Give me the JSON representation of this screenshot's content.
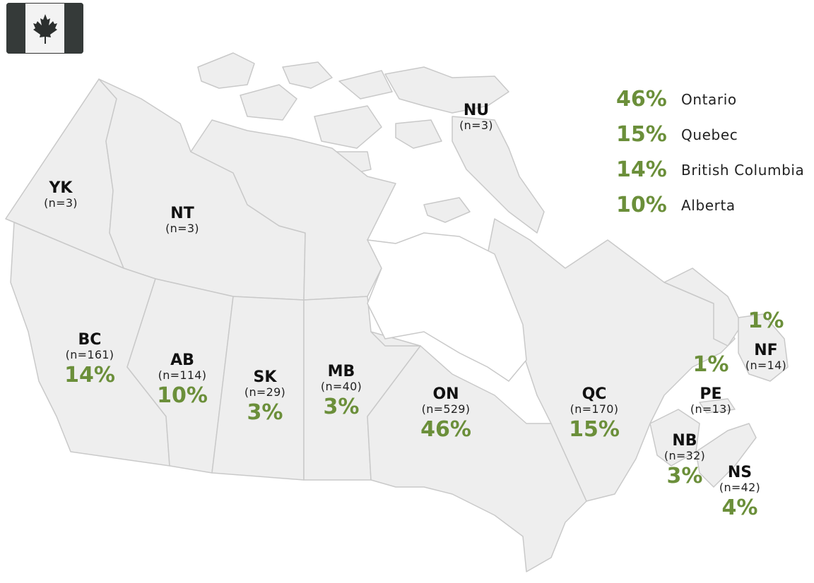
{
  "accent_color": "#6b8f3a",
  "land_color": "#eeeeee",
  "border_color": "#c9c9c9",
  "flag": {
    "icon": "maple-leaf-icon",
    "bar_color": "#353a39"
  },
  "legend": [
    {
      "pct": "46%",
      "name": "Ontario"
    },
    {
      "pct": "15%",
      "name": "Quebec"
    },
    {
      "pct": "14%",
      "name": "British Columbia"
    },
    {
      "pct": "10%",
      "name": "Alberta"
    }
  ],
  "regions": {
    "nu": {
      "code": "NU",
      "n": "(n=3)",
      "pct": ""
    },
    "yk": {
      "code": "YK",
      "n": "(n=3)",
      "pct": ""
    },
    "nt": {
      "code": "NT",
      "n": "(n=3)",
      "pct": ""
    },
    "bc": {
      "code": "BC",
      "n": "(n=161)",
      "pct": "14%"
    },
    "ab": {
      "code": "AB",
      "n": "(n=114)",
      "pct": "10%"
    },
    "sk": {
      "code": "SK",
      "n": "(n=29)",
      "pct": "3%"
    },
    "mb": {
      "code": "MB",
      "n": "(n=40)",
      "pct": "3%"
    },
    "on": {
      "code": "ON",
      "n": "(n=529)",
      "pct": "46%"
    },
    "qc": {
      "code": "QC",
      "n": "(n=170)",
      "pct": "15%"
    },
    "nf": {
      "code": "NF",
      "n": "(n=14)",
      "pct": "1%"
    },
    "pe": {
      "code": "PE",
      "n": "(n=13)",
      "pct": "1%"
    },
    "nb": {
      "code": "NB",
      "n": "(n=32)",
      "pct": "3%"
    },
    "ns": {
      "code": "NS",
      "n": "(n=42)",
      "pct": "4%"
    }
  }
}
